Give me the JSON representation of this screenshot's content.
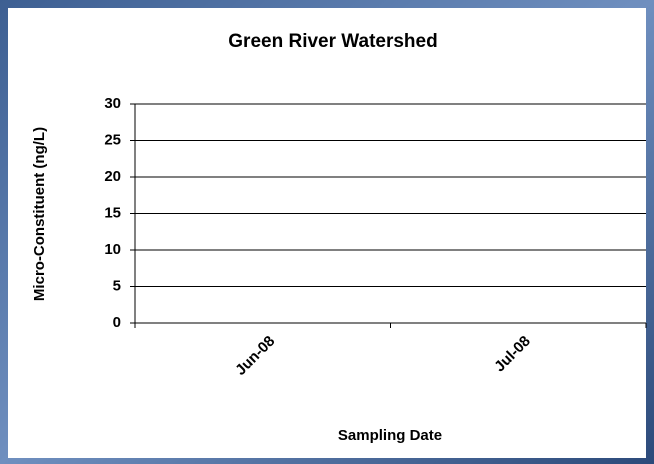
{
  "chart_data": {
    "type": "line",
    "title": "Green River Watershed",
    "x_label": "Sampling Date",
    "y_label": "Micro-Constituent (ng/L)",
    "categories": [
      "Jun-08",
      "Jul-08"
    ],
    "ylim": [
      0,
      30
    ],
    "yticks": [
      0,
      5,
      10,
      15,
      20,
      25,
      30
    ],
    "grid": true
  }
}
